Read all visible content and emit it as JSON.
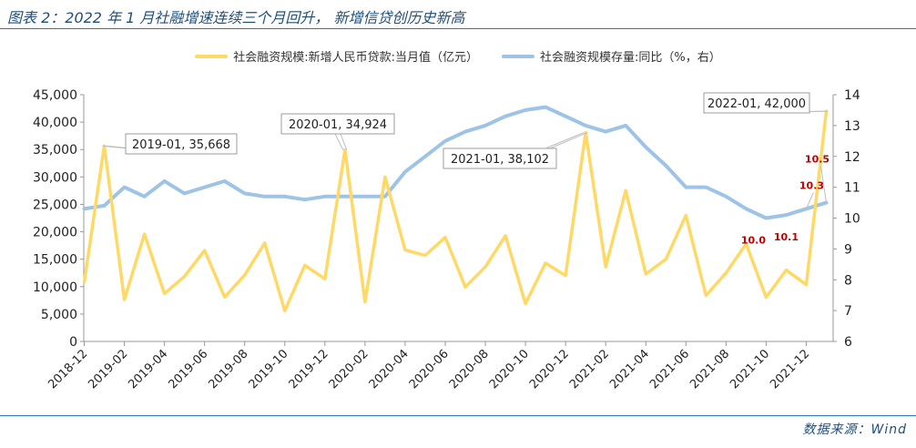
{
  "header": {
    "title": "图表 2：2022 年 1 月社融增速连续三个月回升， 新增信贷创历史新高"
  },
  "footer": {
    "source": "数据来源：Wind"
  },
  "colors": {
    "bar_series": "#ffd966",
    "line_series": "#9dc3e6",
    "accent": "#2e75b6",
    "label_red": "#c00000"
  },
  "chart_data": {
    "type": "line",
    "title": "",
    "x": [
      "2018-12",
      "2019-01",
      "2019-02",
      "2019-03",
      "2019-04",
      "2019-05",
      "2019-06",
      "2019-07",
      "2019-08",
      "2019-09",
      "2019-10",
      "2019-11",
      "2019-12",
      "2020-01",
      "2020-02",
      "2020-03",
      "2020-04",
      "2020-05",
      "2020-06",
      "2020-07",
      "2020-08",
      "2020-09",
      "2020-10",
      "2020-11",
      "2020-12",
      "2021-01",
      "2021-02",
      "2021-03",
      "2021-04",
      "2021-05",
      "2021-06",
      "2021-07",
      "2021-08",
      "2021-09",
      "2021-10",
      "2021-11",
      "2021-12",
      "2022-01"
    ],
    "x_tick_labels": [
      "2018-12",
      "2019-02",
      "2019-04",
      "2019-06",
      "2019-08",
      "2019-10",
      "2019-12",
      "2020-02",
      "2020-04",
      "2020-06",
      "2020-08",
      "2020-10",
      "2020-12",
      "2021-02",
      "2021-04",
      "2021-06",
      "2021-08",
      "2021-10",
      "2021-12"
    ],
    "series": [
      {
        "name": "社会融资规模:新增人民币贷款:当月值（亿元）",
        "axis": "left",
        "values": [
          10800,
          35668,
          7641,
          19584,
          8733,
          11855,
          16600,
          8086,
          12100,
          17952,
          5613,
          13900,
          11400,
          34924,
          7200,
          30000,
          16700,
          15700,
          19000,
          9927,
          13600,
          19300,
          6898,
          14300,
          12000,
          38102,
          13600,
          27511,
          12300,
          15000,
          23000,
          8391,
          12500,
          17800,
          8052,
          13021,
          10350,
          42000
        ]
      },
      {
        "name": "社会融资规模存量:同比（%，右）",
        "axis": "right",
        "values": [
          10.3,
          10.4,
          11.0,
          10.7,
          11.2,
          10.8,
          11.0,
          11.2,
          10.8,
          10.7,
          10.7,
          10.6,
          10.7,
          10.7,
          10.7,
          10.7,
          11.5,
          12.0,
          12.5,
          12.8,
          13.0,
          13.3,
          13.5,
          13.6,
          13.3,
          13.0,
          12.8,
          13.0,
          12.3,
          11.7,
          11.0,
          11.0,
          10.7,
          10.3,
          10.0,
          10.1,
          10.3,
          10.5
        ]
      }
    ],
    "left_axis": {
      "min": 0,
      "max": 45000,
      "ticks": [
        "0",
        "5,000",
        "10,000",
        "15,000",
        "20,000",
        "25,000",
        "30,000",
        "35,000",
        "40,000",
        "45,000"
      ]
    },
    "right_axis": {
      "min": 6,
      "max": 14,
      "ticks": [
        "6",
        "7",
        "8",
        "9",
        "10",
        "11",
        "12",
        "13",
        "14"
      ]
    },
    "callouts": [
      {
        "text": "2019-01, 35,668",
        "index": 1
      },
      {
        "text": "2020-01, 34,924",
        "index": 13
      },
      {
        "text": "2021-01, 38,102",
        "index": 25
      },
      {
        "text": "2022-01, 42,000",
        "index": 37
      }
    ],
    "red_labels": [
      {
        "text": "10.0",
        "index": 34
      },
      {
        "text": "10.1",
        "index": 35
      },
      {
        "text": "10.3",
        "index": 36
      },
      {
        "text": "10.5",
        "index": 37
      }
    ],
    "legend": [
      {
        "label": "社会融资规模:新增人民币贷款:当月值（亿元）"
      },
      {
        "label": "社会融资规模存量:同比（%，右）"
      }
    ],
    "legend_position": "top-center",
    "grid": false
  }
}
